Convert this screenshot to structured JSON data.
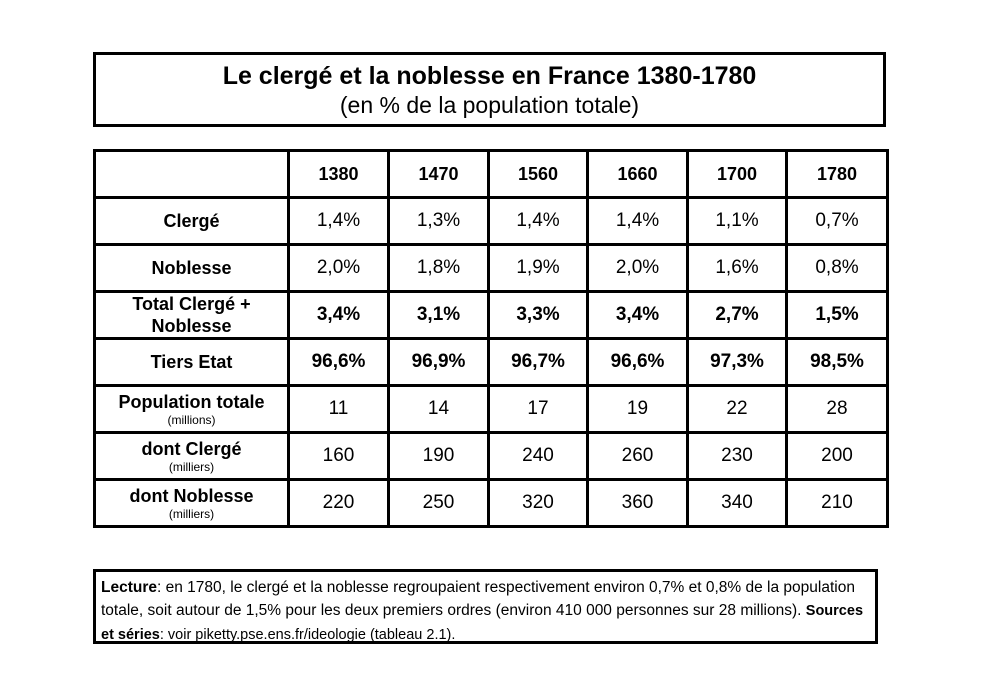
{
  "title": "Le clergé et la noblesse en France 1380-1780",
  "subtitle": "(en % de la population totale)",
  "table": {
    "years": [
      "1380",
      "1470",
      "1560",
      "1660",
      "1700",
      "1780"
    ],
    "rows": [
      {
        "label": "Clergé",
        "sub": "",
        "values": [
          "1,4%",
          "1,3%",
          "1,4%",
          "1,4%",
          "1,1%",
          "0,7%"
        ],
        "bold": false
      },
      {
        "label": "Noblesse",
        "sub": "",
        "values": [
          "2,0%",
          "1,8%",
          "1,9%",
          "2,0%",
          "1,6%",
          "0,8%"
        ],
        "bold": false
      },
      {
        "label": "Total Clergé + Noblesse",
        "sub": "",
        "values": [
          "3,4%",
          "3,1%",
          "3,3%",
          "3,4%",
          "2,7%",
          "1,5%"
        ],
        "bold": true
      },
      {
        "label": "Tiers Etat",
        "sub": "",
        "values": [
          "96,6%",
          "96,9%",
          "96,7%",
          "96,6%",
          "97,3%",
          "98,5%"
        ],
        "bold": true
      },
      {
        "label": "Population totale",
        "sub": "(millions)",
        "values": [
          "11",
          "14",
          "17",
          "19",
          "22",
          "28"
        ],
        "bold": false
      },
      {
        "label": "dont Clergé",
        "sub": "(milliers)",
        "values": [
          "160",
          "190",
          "240",
          "260",
          "230",
          "200"
        ],
        "bold": false
      },
      {
        "label": "dont Noblesse",
        "sub": "(milliers)",
        "values": [
          "220",
          "250",
          "320",
          "360",
          "340",
          "210"
        ],
        "bold": false
      }
    ]
  },
  "note": {
    "lecture_label": "Lecture",
    "lecture_text": ": en 1780, le clergé et la noblesse regroupaient respectivement environ 0,7% et 0,8% de la population totale, soit autour de 1,5% pour les deux premiers ordres (environ 410 000 personnes sur 28 millions).",
    "sources_label": "Sources et séries",
    "sources_text": ": voir piketty.pse.ens.fr/ideologie (tableau 2.1)."
  }
}
